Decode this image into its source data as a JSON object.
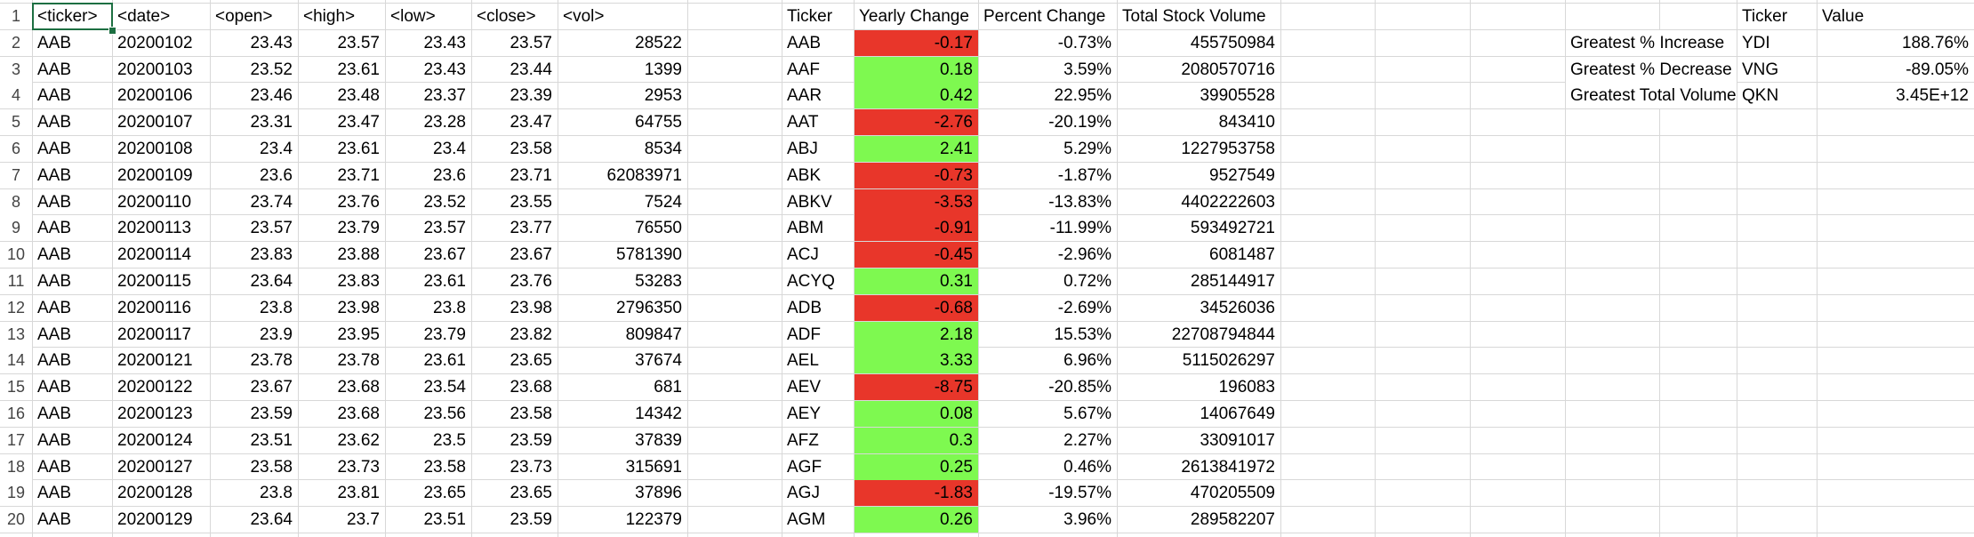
{
  "colors": {
    "negative": "#e8362a",
    "positive": "#7ef950",
    "gridline": "#d8d8d8",
    "selection": "#1d6f42"
  },
  "row_numbers": [
    "1",
    "2",
    "3",
    "4",
    "5",
    "6",
    "7",
    "8",
    "9",
    "10",
    "11",
    "12",
    "13",
    "14",
    "15",
    "16",
    "17",
    "18",
    "19",
    "20"
  ],
  "raw_table": {
    "headers": [
      "<ticker>",
      "<date>",
      "<open>",
      "<high>",
      "<low>",
      "<close>",
      "<vol>"
    ],
    "rows": [
      [
        "AAB",
        "20200102",
        "23.43",
        "23.57",
        "23.43",
        "23.57",
        "28522"
      ],
      [
        "AAB",
        "20200103",
        "23.52",
        "23.61",
        "23.43",
        "23.44",
        "1399"
      ],
      [
        "AAB",
        "20200106",
        "23.46",
        "23.48",
        "23.37",
        "23.39",
        "2953"
      ],
      [
        "AAB",
        "20200107",
        "23.31",
        "23.47",
        "23.28",
        "23.47",
        "64755"
      ],
      [
        "AAB",
        "20200108",
        "23.4",
        "23.61",
        "23.4",
        "23.58",
        "8534"
      ],
      [
        "AAB",
        "20200109",
        "23.6",
        "23.71",
        "23.6",
        "23.71",
        "62083971"
      ],
      [
        "AAB",
        "20200110",
        "23.74",
        "23.76",
        "23.52",
        "23.55",
        "7524"
      ],
      [
        "AAB",
        "20200113",
        "23.57",
        "23.79",
        "23.57",
        "23.77",
        "76550"
      ],
      [
        "AAB",
        "20200114",
        "23.83",
        "23.88",
        "23.67",
        "23.67",
        "5781390"
      ],
      [
        "AAB",
        "20200115",
        "23.64",
        "23.83",
        "23.61",
        "23.76",
        "53283"
      ],
      [
        "AAB",
        "20200116",
        "23.8",
        "23.98",
        "23.8",
        "23.98",
        "2796350"
      ],
      [
        "AAB",
        "20200117",
        "23.9",
        "23.95",
        "23.79",
        "23.82",
        "809847"
      ],
      [
        "AAB",
        "20200121",
        "23.78",
        "23.78",
        "23.61",
        "23.65",
        "37674"
      ],
      [
        "AAB",
        "20200122",
        "23.67",
        "23.68",
        "23.54",
        "23.68",
        "681"
      ],
      [
        "AAB",
        "20200123",
        "23.59",
        "23.68",
        "23.56",
        "23.58",
        "14342"
      ],
      [
        "AAB",
        "20200124",
        "23.51",
        "23.62",
        "23.5",
        "23.59",
        "37839"
      ],
      [
        "AAB",
        "20200127",
        "23.58",
        "23.73",
        "23.58",
        "23.73",
        "315691"
      ],
      [
        "AAB",
        "20200128",
        "23.8",
        "23.81",
        "23.65",
        "23.65",
        "37896"
      ],
      [
        "AAB",
        "20200129",
        "23.64",
        "23.7",
        "23.51",
        "23.59",
        "122379"
      ]
    ]
  },
  "summary_table": {
    "headers": [
      "Ticker",
      "Yearly Change",
      "Percent Change",
      "Total Stock Volume"
    ],
    "rows": [
      [
        "AAB",
        "-0.17",
        "-0.73%",
        "455750984"
      ],
      [
        "AAF",
        "0.18",
        "3.59%",
        "2080570716"
      ],
      [
        "AAR",
        "0.42",
        "22.95%",
        "39905528"
      ],
      [
        "AAT",
        "-2.76",
        "-20.19%",
        "843410"
      ],
      [
        "ABJ",
        "2.41",
        "5.29%",
        "1227953758"
      ],
      [
        "ABK",
        "-0.73",
        "-1.87%",
        "9527549"
      ],
      [
        "ABKV",
        "-3.53",
        "-13.83%",
        "4402222603"
      ],
      [
        "ABM",
        "-0.91",
        "-11.99%",
        "593492721"
      ],
      [
        "ACJ",
        "-0.45",
        "-2.96%",
        "6081487"
      ],
      [
        "ACYQ",
        "0.31",
        "0.72%",
        "285144917"
      ],
      [
        "ADB",
        "-0.68",
        "-2.69%",
        "34526036"
      ],
      [
        "ADF",
        "2.18",
        "15.53%",
        "22708794844"
      ],
      [
        "AEL",
        "3.33",
        "6.96%",
        "5115026297"
      ],
      [
        "AEV",
        "-8.75",
        "-20.85%",
        "196083"
      ],
      [
        "AEY",
        "0.08",
        "5.67%",
        "14067649"
      ],
      [
        "AFZ",
        "0.3",
        "2.27%",
        "33091017"
      ],
      [
        "AGF",
        "0.25",
        "0.46%",
        "2613841972"
      ],
      [
        "AGJ",
        "-1.83",
        "-19.57%",
        "470205509"
      ],
      [
        "AGM",
        "0.26",
        "3.96%",
        "289582207"
      ]
    ]
  },
  "greatest_table": {
    "headers": [
      "Ticker",
      "Value"
    ],
    "rows": [
      [
        "Greatest % Increase",
        "YDI",
        "188.76%"
      ],
      [
        "Greatest % Decrease",
        "VNG",
        "-89.05%"
      ],
      [
        "Greatest Total Volume",
        "QKN",
        "3.45E+12"
      ]
    ]
  }
}
